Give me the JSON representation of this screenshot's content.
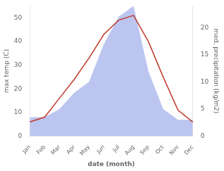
{
  "chart_data": {
    "type": "line",
    "categories": [
      "Jan",
      "Feb",
      "Mar",
      "Apr",
      "May",
      "Jun",
      "Jul",
      "Aug",
      "Sep",
      "Oct",
      "Nov",
      "Dec"
    ],
    "series": [
      {
        "type": "area",
        "color": "#bbc5f0",
        "axis": "y2",
        "values": [
          3.5,
          3.5,
          5,
          8,
          10,
          17,
          22,
          24,
          12,
          5,
          3,
          3
        ]
      },
      {
        "type": "line",
        "color": "#c0392b",
        "values": [
          6,
          8,
          16,
          24,
          33,
          43,
          49,
          51,
          40,
          25,
          11,
          6
        ]
      }
    ],
    "xlabel": "date (month)",
    "ylabel": "max temp (C)",
    "y2label": "med. precipitation (kg/m2)",
    "ylim": [
      0,
      55
    ],
    "yticks": [
      0,
      10,
      20,
      30,
      40,
      50
    ],
    "y2lim": [
      0,
      24
    ],
    "y2ticks": [
      0,
      5,
      10,
      15,
      20
    ],
    "grid": false
  }
}
